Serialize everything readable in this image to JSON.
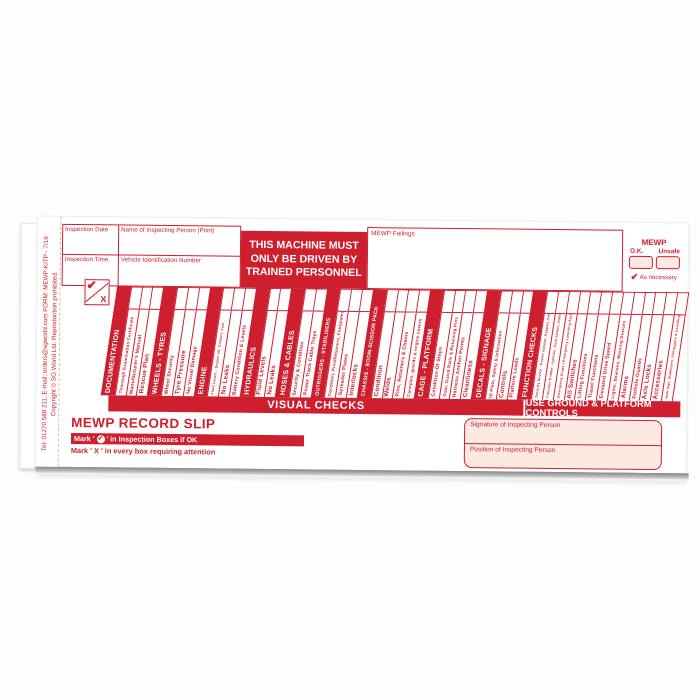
{
  "colors": {
    "red": "#cd1f2d",
    "pink": "#fbe9e2"
  },
  "edge": {
    "line1": "Tel: 01270 588 211, E-mail: orders@sgworld.com FORM: MEWP-KITP - 7/19",
    "line2": "Copyright © SG World Ltd. Reproduction prohibited."
  },
  "header": {
    "fields": {
      "date": "Inspection Date",
      "name": "Name of Inspecting Person (Print)",
      "time": "Inspection Time",
      "vehicle": "Vehicle Identification Number"
    },
    "notice": "THIS MACHINE MUST ONLY BE DRIVEN BY TRAINED PERSONNEL",
    "failings_label": "MEWP Failings",
    "status": {
      "title": "MEWP",
      "ok": "O.K.",
      "unsafe": "Unsafe",
      "check_icon": "✔",
      "as_necessary": "As necessary"
    }
  },
  "marker": {
    "check": "✔",
    "cross": "X"
  },
  "checklist": {
    "columns": [
      {
        "type": "header",
        "label": "DOCUMENTATION"
      },
      {
        "type": "item",
        "label": "Thorough Examination Certificate"
      },
      {
        "type": "item",
        "label": "Manufacturer's Manual"
      },
      {
        "type": "item",
        "label": "Rescue Plan"
      },
      {
        "type": "header",
        "label": "WHEELS - TYRES"
      },
      {
        "type": "item",
        "label": "Wheel Security"
      },
      {
        "type": "item",
        "label": "Tyre Pressure"
      },
      {
        "type": "item",
        "label": "No Visual Damage"
      },
      {
        "type": "header",
        "label": "ENGINE"
      },
      {
        "type": "item",
        "label": "Fluid Levels - Engine oil, Coolant, Fuel"
      },
      {
        "type": "item",
        "label": "No Leaks"
      },
      {
        "type": "item",
        "label": "Battery Condition & Levels"
      },
      {
        "type": "header",
        "label": "HYDRAULICS"
      },
      {
        "type": "item",
        "label": "Fluid Levels"
      },
      {
        "type": "item",
        "label": "No Leaks"
      },
      {
        "type": "header",
        "label": "HOSES & CABLES"
      },
      {
        "type": "item",
        "label": "Security & Condition"
      },
      {
        "type": "item",
        "label": "Power Track Cable Trays"
      },
      {
        "type": "header",
        "label": "OUTRIGGERS - STABILISERS"
      },
      {
        "type": "item",
        "label": "Condition, Pins/Retainers, Footplates"
      },
      {
        "type": "item",
        "label": "Spreader Plates"
      },
      {
        "type": "item",
        "label": "Interlocks"
      },
      {
        "type": "header",
        "label": "CHASSIS - BOOM-SCISSOR PACK"
      },
      {
        "type": "item",
        "label": "Condition"
      },
      {
        "type": "item",
        "label": "Welds"
      },
      {
        "type": "item",
        "label": "Pins, Retainers & Chains"
      },
      {
        "type": "item",
        "label": "Canopies, guards & engine covers"
      },
      {
        "type": "header",
        "label": "CAGE - PLATFORM"
      },
      {
        "type": "item",
        "label": "Condition Of Steps"
      },
      {
        "type": "item",
        "label": "Gate, Guard Rails & Retaining Pins"
      },
      {
        "type": "item",
        "label": "Harness Anchor Points"
      },
      {
        "type": "item",
        "label": "Cleanliness"
      },
      {
        "type": "header",
        "label": "DECALS - SIGNAGE"
      },
      {
        "type": "item",
        "label": "ID Plate, Safety & Information"
      },
      {
        "type": "item",
        "label": "Controls"
      },
      {
        "type": "item",
        "label": "Platform Loads"
      },
      {
        "type": "header",
        "label": "FUNCTION CHECKS"
      },
      {
        "type": "item",
        "label": "Security Device - Power Isolator, Keypad, Smart Card"
      },
      {
        "type": "item",
        "label": "Function Enable - Ignition, Foot Switch, Hold To Run"
      },
      {
        "type": "item",
        "label": "Emergency Stops / Emergency Lowering System"
      },
      {
        "type": "item",
        "label": "All Switches"
      },
      {
        "type": "item",
        "label": "Lifting Functions"
      },
      {
        "type": "item",
        "label": "Travel Functions"
      },
      {
        "type": "item",
        "label": "Elevated Drive Speed"
      },
      {
        "type": "item",
        "label": "Lights, Beacons, Warning Devices"
      },
      {
        "type": "item",
        "label": "Alarms"
      },
      {
        "type": "item",
        "label": "Pothole Guards"
      },
      {
        "type": "item",
        "label": "Axle Locks"
      },
      {
        "type": "item",
        "label": "Accessories"
      },
      {
        "type": "item",
        "label": "Jack-legs, Stabilisers, Outriggers & Levelling Devices"
      }
    ]
  },
  "banners": {
    "visual": "VISUAL CHECKS",
    "controls": "USE GROUND & PLATFORM CONTROLS"
  },
  "footer": {
    "title": "MEWP RECORD SLIP",
    "mark_ok_prefix": "Mark '",
    "mark_ok_icon": "✔",
    "mark_ok_suffix": "' in Inspection Boxes if OK",
    "mark_x": "Mark '  X  ' in every box requiring attention",
    "signature_label": "Signature of Inspecting Person",
    "position_label": "Position of Inspecting Person"
  }
}
